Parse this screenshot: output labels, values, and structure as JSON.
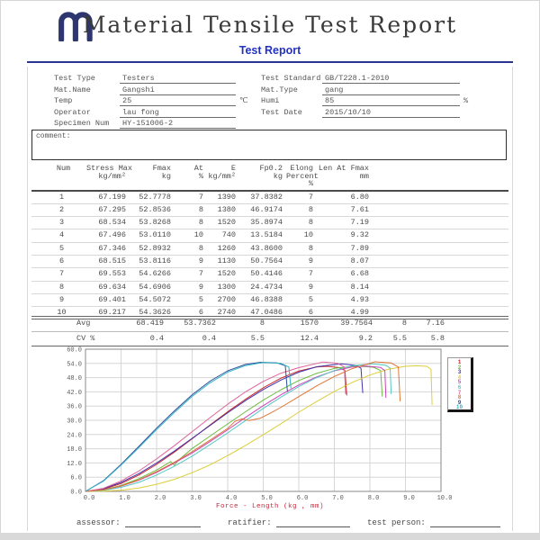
{
  "header": {
    "title": "Material Tensile Test Report",
    "subtitle": "Test Report",
    "accent_color": "#2b3390"
  },
  "info": {
    "left": [
      {
        "label": "Test Type",
        "value": "Testers",
        "unit": ""
      },
      {
        "label": "Mat.Name",
        "value": "Gangshi",
        "unit": ""
      },
      {
        "label": "Temp",
        "value": "25",
        "unit": "℃"
      },
      {
        "label": "Operator",
        "value": "lau fong",
        "unit": ""
      },
      {
        "label": "Specimen Num",
        "value": "HY-151006-2",
        "unit": ""
      }
    ],
    "right": [
      {
        "label": "Test Standard",
        "value": "GB/T228.1-2010",
        "unit": ""
      },
      {
        "label": "Mat.Type",
        "value": "gang",
        "unit": ""
      },
      {
        "label": "Humi",
        "value": "85",
        "unit": "%"
      },
      {
        "label": "Test Date",
        "value": "2015/10/10",
        "unit": ""
      }
    ]
  },
  "comment": {
    "label": "comment:",
    "value": ""
  },
  "table": {
    "headers": [
      [
        "Num"
      ],
      [
        "Stress Max",
        "kg/mm²"
      ],
      [
        "Fmax",
        "kg"
      ],
      [
        "At",
        "%"
      ],
      [
        "E",
        "kg/mm²"
      ],
      [
        "Fp0.2",
        "kg"
      ],
      [
        "Elong",
        "Percent",
        "%"
      ],
      [
        "Len At Fmax",
        "mm"
      ]
    ],
    "rows": [
      [
        "1",
        "67.199",
        "52.7778",
        "7",
        "1390",
        "37.8382",
        "7",
        "6.80"
      ],
      [
        "2",
        "67.295",
        "52.8536",
        "8",
        "1380",
        "46.9174",
        "8",
        "7.61"
      ],
      [
        "3",
        "68.534",
        "53.8268",
        "8",
        "1520",
        "35.8974",
        "8",
        "7.19"
      ],
      [
        "4",
        "67.496",
        "53.0110",
        "10",
        "740",
        "13.5184",
        "10",
        "9.32"
      ],
      [
        "5",
        "67.346",
        "52.8932",
        "8",
        "1260",
        "43.8600",
        "8",
        "7.89"
      ],
      [
        "6",
        "68.515",
        "53.8116",
        "9",
        "1130",
        "50.7564",
        "9",
        "8.07"
      ],
      [
        "7",
        "69.553",
        "54.6266",
        "7",
        "1520",
        "50.4146",
        "7",
        "6.68"
      ],
      [
        "8",
        "69.634",
        "54.6906",
        "9",
        "1300",
        "24.4734",
        "9",
        "8.14"
      ],
      [
        "9",
        "69.401",
        "54.5072",
        "5",
        "2700",
        "46.8388",
        "5",
        "4.93"
      ],
      [
        "10",
        "69.217",
        "54.3626",
        "6",
        "2740",
        "47.0486",
        "6",
        "4.99"
      ]
    ],
    "avg": {
      "label": "Avg",
      "values": [
        "68.419",
        "53.7362",
        "8",
        "1570",
        "39.7564",
        "8",
        "7.16"
      ]
    },
    "cv": {
      "label": "CV %",
      "values": [
        "0.4",
        "0.4",
        "5.5",
        "12.4",
        "9.2",
        "5.5",
        "5.8"
      ]
    }
  },
  "chart_data": {
    "type": "line",
    "title": "",
    "xlabel": "Force - Length   (kg , mm)",
    "xlabel_color": "#c32a3c",
    "ylabel": "",
    "xlim": [
      0,
      10
    ],
    "ylim": [
      0,
      60
    ],
    "x_tick_step": 1.0,
    "y_tick_step": 6.0,
    "grid": true,
    "legend_position": "right",
    "series": [
      {
        "name": "1",
        "color": "#cc2a2a",
        "points": [
          [
            0,
            0
          ],
          [
            0.5,
            0.9
          ],
          [
            1,
            3.3
          ],
          [
            1.5,
            6.9
          ],
          [
            2,
            11.4
          ],
          [
            2.5,
            16.6
          ],
          [
            3,
            22.2
          ],
          [
            3.5,
            28
          ],
          [
            4,
            33.6
          ],
          [
            4.5,
            38.9
          ],
          [
            5,
            43.7
          ],
          [
            5.5,
            47.8
          ],
          [
            6,
            50.8
          ],
          [
            6.5,
            52.5
          ],
          [
            6.8,
            52.8
          ],
          [
            7.15,
            52.2
          ],
          [
            7.3,
            51
          ],
          [
            7.35,
            40.5
          ]
        ]
      },
      {
        "name": "2",
        "color": "#6dbb44",
        "points": [
          [
            0,
            0
          ],
          [
            0.5,
            0.7
          ],
          [
            1,
            2.5
          ],
          [
            1.5,
            5.4
          ],
          [
            2,
            9
          ],
          [
            2.4,
            12.6
          ],
          [
            2.5,
            11
          ],
          [
            2.6,
            13
          ],
          [
            3,
            18.1
          ],
          [
            3.5,
            23.3
          ],
          [
            4,
            28.5
          ],
          [
            4.5,
            33.6
          ],
          [
            5,
            38.5
          ],
          [
            5.5,
            42.9
          ],
          [
            6,
            46.8
          ],
          [
            6.5,
            49.8
          ],
          [
            7,
            51.9
          ],
          [
            7.61,
            52.9
          ],
          [
            8.1,
            52.4
          ],
          [
            8.3,
            51
          ],
          [
            8.35,
            40
          ]
        ]
      },
      {
        "name": "3",
        "color": "#4433aa",
        "points": [
          [
            0,
            0
          ],
          [
            0.5,
            1.1
          ],
          [
            1,
            3.8
          ],
          [
            1.5,
            7.5
          ],
          [
            2,
            12
          ],
          [
            2.5,
            17
          ],
          [
            3,
            22.4
          ],
          [
            3.5,
            27.8
          ],
          [
            4,
            33.2
          ],
          [
            4.5,
            38.3
          ],
          [
            5,
            43
          ],
          [
            5.5,
            47
          ],
          [
            6,
            50.3
          ],
          [
            6.5,
            52.6
          ],
          [
            7.19,
            53.8
          ],
          [
            7.6,
            53.2
          ],
          [
            7.75,
            52
          ],
          [
            7.8,
            41.5
          ]
        ]
      },
      {
        "name": "4",
        "color": "#ddce3a",
        "points": [
          [
            0,
            0
          ],
          [
            0.5,
            0.1
          ],
          [
            1,
            0.5
          ],
          [
            1.5,
            1.4
          ],
          [
            2,
            3
          ],
          [
            2.5,
            5.1
          ],
          [
            3,
            7.9
          ],
          [
            3.5,
            11.2
          ],
          [
            4,
            15.1
          ],
          [
            4.5,
            19.4
          ],
          [
            5,
            23.9
          ],
          [
            5.5,
            28.6
          ],
          [
            6,
            33.4
          ],
          [
            6.5,
            37.9
          ],
          [
            7,
            42.2
          ],
          [
            7.5,
            46
          ],
          [
            8,
            49.1
          ],
          [
            8.5,
            51.5
          ],
          [
            9,
            52.8
          ],
          [
            9.32,
            53
          ],
          [
            9.6,
            52.8
          ],
          [
            9.72,
            51.5
          ],
          [
            9.75,
            36.5
          ]
        ]
      },
      {
        "name": "5",
        "color": "#cc44bb",
        "points": [
          [
            0,
            0
          ],
          [
            0.5,
            0.6
          ],
          [
            1,
            2.2
          ],
          [
            1.5,
            4.7
          ],
          [
            2,
            8
          ],
          [
            2.5,
            12
          ],
          [
            3,
            16.2
          ],
          [
            3.5,
            21
          ],
          [
            4,
            26
          ],
          [
            4.5,
            31.2
          ],
          [
            5,
            36.2
          ],
          [
            5.5,
            40.8
          ],
          [
            6,
            44.9
          ],
          [
            6.5,
            48.3
          ],
          [
            7,
            50.9
          ],
          [
            7.5,
            52.5
          ],
          [
            7.89,
            52.9
          ],
          [
            8.3,
            52.3
          ],
          [
            8.42,
            51
          ],
          [
            8.45,
            39.5
          ]
        ]
      },
      {
        "name": "6",
        "color": "#57c9c0",
        "points": [
          [
            0,
            0
          ],
          [
            0.5,
            0.4
          ],
          [
            1,
            1.7
          ],
          [
            1.5,
            3.8
          ],
          [
            2,
            6.9
          ],
          [
            2.5,
            10.6
          ],
          [
            3,
            14.9
          ],
          [
            3.5,
            19.7
          ],
          [
            4,
            24.7
          ],
          [
            4.5,
            29.9
          ],
          [
            5,
            35
          ],
          [
            5.5,
            39.8
          ],
          [
            6,
            44.2
          ],
          [
            6.5,
            48
          ],
          [
            7,
            51
          ],
          [
            7.5,
            53
          ],
          [
            8.07,
            53.8
          ],
          [
            8.45,
            53.2
          ],
          [
            8.57,
            52
          ],
          [
            8.6,
            41
          ]
        ]
      },
      {
        "name": "7",
        "color": "#e0639c",
        "points": [
          [
            0,
            0
          ],
          [
            0.5,
            1.3
          ],
          [
            1,
            4.4
          ],
          [
            1.5,
            8.6
          ],
          [
            2,
            13.7
          ],
          [
            2.5,
            19.3
          ],
          [
            3,
            25.2
          ],
          [
            3.5,
            31.1
          ],
          [
            4,
            36.8
          ],
          [
            4.5,
            42
          ],
          [
            5,
            46.4
          ],
          [
            5.5,
            49.9
          ],
          [
            6,
            52.2
          ],
          [
            6.68,
            54.6
          ],
          [
            7.1,
            54
          ],
          [
            7.28,
            52.5
          ],
          [
            7.32,
            41
          ]
        ]
      },
      {
        "name": "8",
        "color": "#dd7636",
        "points": [
          [
            0,
            0
          ],
          [
            0.5,
            0.6
          ],
          [
            1,
            2.3
          ],
          [
            1.5,
            4.9
          ],
          [
            2,
            8.3
          ],
          [
            2.5,
            12.3
          ],
          [
            3,
            16.8
          ],
          [
            3.5,
            21.6
          ],
          [
            4,
            26.6
          ],
          [
            4.2,
            29.5
          ],
          [
            4.4,
            30.6
          ],
          [
            4.6,
            29.9
          ],
          [
            4.9,
            30.8
          ],
          [
            5.2,
            33
          ],
          [
            5.5,
            35.5
          ],
          [
            6,
            40
          ],
          [
            6.5,
            44.5
          ],
          [
            7,
            48.5
          ],
          [
            7.5,
            51.8
          ],
          [
            8.14,
            54.7
          ],
          [
            8.6,
            54.2
          ],
          [
            8.8,
            52.5
          ],
          [
            8.85,
            38
          ]
        ]
      },
      {
        "name": "9",
        "color": "#2d4f9e",
        "points": [
          [
            0,
            0
          ],
          [
            0.5,
            4.5
          ],
          [
            1,
            11.4
          ],
          [
            1.5,
            19
          ],
          [
            2,
            26.7
          ],
          [
            2.5,
            34
          ],
          [
            3,
            40.8
          ],
          [
            3.5,
            46.5
          ],
          [
            4,
            50.9
          ],
          [
            4.5,
            53.6
          ],
          [
            4.93,
            54.5
          ],
          [
            5.4,
            54.2
          ],
          [
            5.62,
            53
          ],
          [
            5.68,
            42
          ]
        ]
      },
      {
        "name": "10",
        "color": "#30b2c2",
        "points": [
          [
            0,
            0
          ],
          [
            0.5,
            4.3
          ],
          [
            1,
            11.1
          ],
          [
            1.5,
            18.5
          ],
          [
            2,
            26.1
          ],
          [
            2.5,
            33.3
          ],
          [
            3,
            40.1
          ],
          [
            3.5,
            45.8
          ],
          [
            4,
            50.3
          ],
          [
            4.5,
            53.1
          ],
          [
            4.99,
            54.4
          ],
          [
            5.5,
            54
          ],
          [
            5.72,
            52.5
          ],
          [
            5.78,
            43.5
          ]
        ]
      }
    ]
  },
  "footer": {
    "fields": [
      {
        "label": "assessor:"
      },
      {
        "label": "ratifier:"
      },
      {
        "label": "test person:"
      }
    ]
  }
}
